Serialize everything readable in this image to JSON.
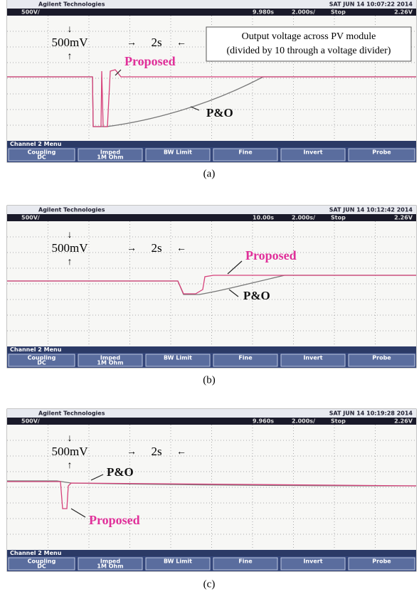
{
  "panels": [
    {
      "brand": "Agilent Technologies",
      "datetime": "SAT JUN 14 10:07:22 2014",
      "status": [
        "500V/",
        "9.980s",
        "2.000s/",
        "Stop",
        "2.26V"
      ],
      "vscale": "500mV",
      "tscale": "2s",
      "note": [
        "Output voltage across PV module",
        "(divided by 10 through a voltage divider)"
      ],
      "proposed": "Proposed",
      "po": "P&O",
      "menu": "Channel 2 Menu",
      "buttons": [
        [
          "Coupling",
          "DC"
        ],
        [
          "Imped",
          "1M Ohm"
        ],
        [
          "BW Limit"
        ],
        [
          "Fine"
        ],
        [
          "Invert"
        ],
        [
          "Probe"
        ]
      ],
      "caption": "(a)"
    },
    {
      "brand": "Agilent Technologies",
      "datetime": "SAT JUN 14 10:12:42 2014",
      "status": [
        "500V/",
        "10.00s",
        "2.000s/",
        "Stop",
        "2.26V"
      ],
      "vscale": "500mV",
      "tscale": "2s",
      "proposed": "Proposed",
      "po": "P&O",
      "menu": "Channel 2 Menu",
      "buttons": [
        [
          "Coupling",
          "DC"
        ],
        [
          "Imped",
          "1M Ohm"
        ],
        [
          "BW Limit"
        ],
        [
          "Fine"
        ],
        [
          "Invert"
        ],
        [
          "Probe"
        ]
      ],
      "caption": "(b)"
    },
    {
      "brand": "Agilent Technologies",
      "datetime": "SAT JUN 14 10:19:28 2014",
      "status": [
        "500V/",
        "9.960s",
        "2.000s/",
        "Stop",
        "2.26V"
      ],
      "vscale": "500mV",
      "tscale": "2s",
      "po": "P&O",
      "proposed": "Proposed",
      "menu": "Channel 2 Menu",
      "buttons": [
        [
          "Coupling",
          "DC"
        ],
        [
          "Imped",
          "1M Ohm"
        ],
        [
          "BW Limit"
        ],
        [
          "Fine"
        ],
        [
          "Invert"
        ],
        [
          "Probe"
        ]
      ],
      "caption": "(c)"
    }
  ]
}
